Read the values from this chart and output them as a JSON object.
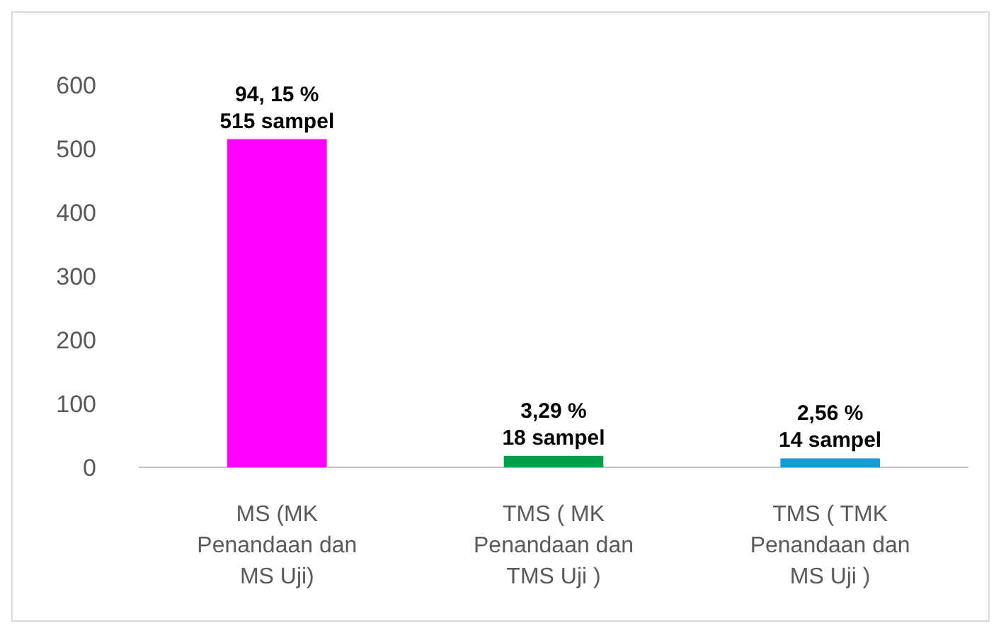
{
  "chart_data": {
    "type": "bar",
    "categories": [
      "MS (MK Penandaan dan MS Uji)",
      "TMS ( MK Penandaan dan TMS Uji )",
      "TMS ( TMK Penandaan dan MS Uji )"
    ],
    "values": [
      515,
      18,
      14
    ],
    "colors": [
      "#ff00ff",
      "#00a04a",
      "#1a9ad6"
    ],
    "value_labels": [
      "94, 15 %\n515 sampel",
      "3,29 %\n18 sampel",
      "2,56 %\n14 sampel"
    ],
    "ylim": [
      0,
      600
    ],
    "yticks": [
      0,
      100,
      200,
      300,
      400,
      500,
      600
    ]
  }
}
